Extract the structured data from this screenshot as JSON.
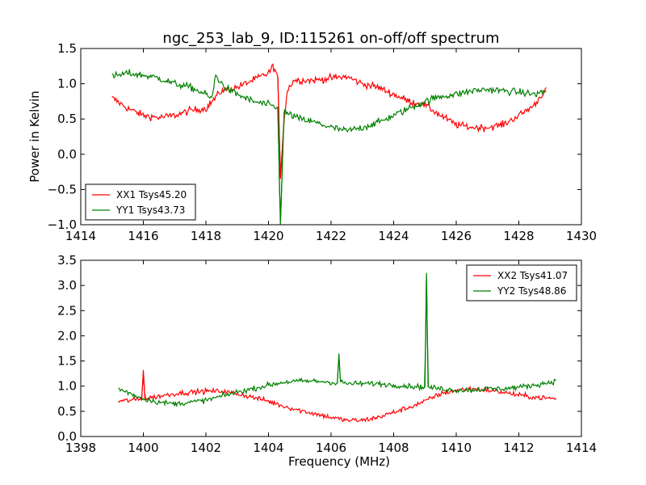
{
  "figure": {
    "title": "ngc_253_lab_9, ID:115261 on-off/off spectrum"
  },
  "chart_data": [
    {
      "type": "line",
      "ylabel": "Power in Kelvin",
      "xlabel": "",
      "xlim": [
        1414,
        1430
      ],
      "ylim": [
        -1.0,
        1.5
      ],
      "xticks": [
        1414,
        1416,
        1418,
        1420,
        1422,
        1424,
        1426,
        1428,
        1430
      ],
      "yticks": [
        -1.0,
        -0.5,
        0.0,
        0.5,
        1.0,
        1.5
      ],
      "xtick_labels": [
        "1414",
        "1416",
        "1418",
        "1420",
        "1422",
        "1424",
        "1426",
        "1428",
        "1430"
      ],
      "ytick_labels": [
        "−1.0",
        "−0.5",
        "0.0",
        "0.5",
        "1.0",
        "1.5"
      ],
      "grid": false,
      "legend": "lower-left",
      "series": [
        {
          "name": "XX1 Tsys45.20",
          "color": "#ff0000",
          "noise": 0.05,
          "points": [
            [
              1415.0,
              0.8
            ],
            [
              1415.5,
              0.65
            ],
            [
              1416.0,
              0.55
            ],
            [
              1416.5,
              0.52
            ],
            [
              1417.0,
              0.55
            ],
            [
              1417.5,
              0.62
            ],
            [
              1418.0,
              0.65
            ],
            [
              1418.5,
              0.9
            ],
            [
              1419.0,
              0.95
            ],
            [
              1419.5,
              1.05
            ],
            [
              1420.0,
              1.15
            ],
            [
              1420.15,
              1.25
            ],
            [
              1420.3,
              1.1
            ],
            [
              1420.38,
              -0.35
            ],
            [
              1420.5,
              0.5
            ],
            [
              1420.6,
              0.9
            ],
            [
              1420.8,
              1.05
            ],
            [
              1421.5,
              1.05
            ],
            [
              1422.0,
              1.08
            ],
            [
              1422.5,
              1.1
            ],
            [
              1423.0,
              1.0
            ],
            [
              1423.5,
              0.95
            ],
            [
              1424.0,
              0.85
            ],
            [
              1424.5,
              0.75
            ],
            [
              1425.0,
              0.7
            ],
            [
              1425.5,
              0.55
            ],
            [
              1426.0,
              0.42
            ],
            [
              1426.5,
              0.38
            ],
            [
              1427.0,
              0.38
            ],
            [
              1427.5,
              0.42
            ],
            [
              1428.0,
              0.55
            ],
            [
              1428.5,
              0.7
            ],
            [
              1428.9,
              0.95
            ]
          ]
        },
        {
          "name": "YY1 Tsys43.73",
          "color": "#008000",
          "noise": 0.05,
          "points": [
            [
              1415.0,
              1.1
            ],
            [
              1415.5,
              1.15
            ],
            [
              1416.0,
              1.12
            ],
            [
              1416.5,
              1.08
            ],
            [
              1417.0,
              1.0
            ],
            [
              1417.5,
              0.95
            ],
            [
              1418.0,
              0.85
            ],
            [
              1418.2,
              0.78
            ],
            [
              1418.3,
              1.12
            ],
            [
              1418.6,
              0.95
            ],
            [
              1419.0,
              0.85
            ],
            [
              1419.5,
              0.75
            ],
            [
              1420.0,
              0.7
            ],
            [
              1420.3,
              0.65
            ],
            [
              1420.38,
              -1.0
            ],
            [
              1420.5,
              0.6
            ],
            [
              1421.0,
              0.5
            ],
            [
              1421.5,
              0.45
            ],
            [
              1422.0,
              0.38
            ],
            [
              1422.5,
              0.33
            ],
            [
              1423.0,
              0.38
            ],
            [
              1423.5,
              0.45
            ],
            [
              1424.0,
              0.55
            ],
            [
              1424.5,
              0.65
            ],
            [
              1425.0,
              0.75
            ],
            [
              1425.5,
              0.82
            ],
            [
              1426.0,
              0.85
            ],
            [
              1426.5,
              0.9
            ],
            [
              1427.0,
              0.92
            ],
            [
              1427.5,
              0.9
            ],
            [
              1428.0,
              0.88
            ],
            [
              1428.5,
              0.85
            ],
            [
              1428.9,
              0.9
            ]
          ]
        }
      ]
    },
    {
      "type": "line",
      "ylabel": "",
      "xlabel": "Frequency (MHz)",
      "xlim": [
        1398,
        1414
      ],
      "ylim": [
        0.0,
        3.5
      ],
      "xticks": [
        1398,
        1400,
        1402,
        1404,
        1406,
        1408,
        1410,
        1412,
        1414
      ],
      "yticks": [
        0.0,
        0.5,
        1.0,
        1.5,
        2.0,
        2.5,
        3.0,
        3.5
      ],
      "xtick_labels": [
        "1398",
        "1400",
        "1402",
        "1404",
        "1406",
        "1408",
        "1410",
        "1412",
        "1414"
      ],
      "ytick_labels": [
        "0.0",
        "0.5",
        "1.0",
        "1.5",
        "2.0",
        "2.5",
        "3.0",
        "3.5"
      ],
      "grid": false,
      "legend": "upper-right",
      "series": [
        {
          "name": "XX2 Tsys41.07",
          "color": "#ff0000",
          "noise": 0.05,
          "points": [
            [
              1399.2,
              0.7
            ],
            [
              1399.6,
              0.72
            ],
            [
              1399.95,
              0.75
            ],
            [
              1400.0,
              1.32
            ],
            [
              1400.05,
              0.75
            ],
            [
              1400.5,
              0.8
            ],
            [
              1401.0,
              0.85
            ],
            [
              1401.5,
              0.88
            ],
            [
              1402.0,
              0.9
            ],
            [
              1402.5,
              0.9
            ],
            [
              1403.0,
              0.85
            ],
            [
              1403.5,
              0.78
            ],
            [
              1404.0,
              0.7
            ],
            [
              1404.5,
              0.6
            ],
            [
              1405.0,
              0.52
            ],
            [
              1405.5,
              0.45
            ],
            [
              1406.0,
              0.38
            ],
            [
              1406.5,
              0.32
            ],
            [
              1407.0,
              0.32
            ],
            [
              1407.5,
              0.38
            ],
            [
              1408.0,
              0.48
            ],
            [
              1408.5,
              0.58
            ],
            [
              1409.0,
              0.7
            ],
            [
              1409.5,
              0.85
            ],
            [
              1410.0,
              0.92
            ],
            [
              1410.5,
              0.95
            ],
            [
              1411.0,
              0.92
            ],
            [
              1411.5,
              0.88
            ],
            [
              1412.0,
              0.82
            ],
            [
              1412.5,
              0.78
            ],
            [
              1413.2,
              0.75
            ]
          ]
        },
        {
          "name": "YY2 Tsys48.86",
          "color": "#008000",
          "noise": 0.05,
          "points": [
            [
              1399.2,
              0.95
            ],
            [
              1399.6,
              0.85
            ],
            [
              1400.0,
              0.75
            ],
            [
              1400.5,
              0.68
            ],
            [
              1401.0,
              0.65
            ],
            [
              1401.5,
              0.68
            ],
            [
              1402.0,
              0.72
            ],
            [
              1402.5,
              0.8
            ],
            [
              1403.0,
              0.88
            ],
            [
              1403.5,
              0.95
            ],
            [
              1404.0,
              1.02
            ],
            [
              1404.5,
              1.08
            ],
            [
              1405.0,
              1.1
            ],
            [
              1405.5,
              1.1
            ],
            [
              1406.0,
              1.08
            ],
            [
              1406.2,
              1.05
            ],
            [
              1406.25,
              1.65
            ],
            [
              1406.3,
              1.08
            ],
            [
              1406.5,
              1.05
            ],
            [
              1407.0,
              1.05
            ],
            [
              1407.5,
              1.05
            ],
            [
              1408.0,
              1.02
            ],
            [
              1408.5,
              1.0
            ],
            [
              1409.0,
              0.98
            ],
            [
              1409.05,
              3.25
            ],
            [
              1409.1,
              0.98
            ],
            [
              1409.5,
              0.95
            ],
            [
              1410.0,
              0.92
            ],
            [
              1410.5,
              0.92
            ],
            [
              1411.0,
              0.95
            ],
            [
              1411.5,
              0.95
            ],
            [
              1412.0,
              0.98
            ],
            [
              1412.5,
              1.02
            ],
            [
              1413.2,
              1.1
            ]
          ]
        }
      ]
    }
  ]
}
